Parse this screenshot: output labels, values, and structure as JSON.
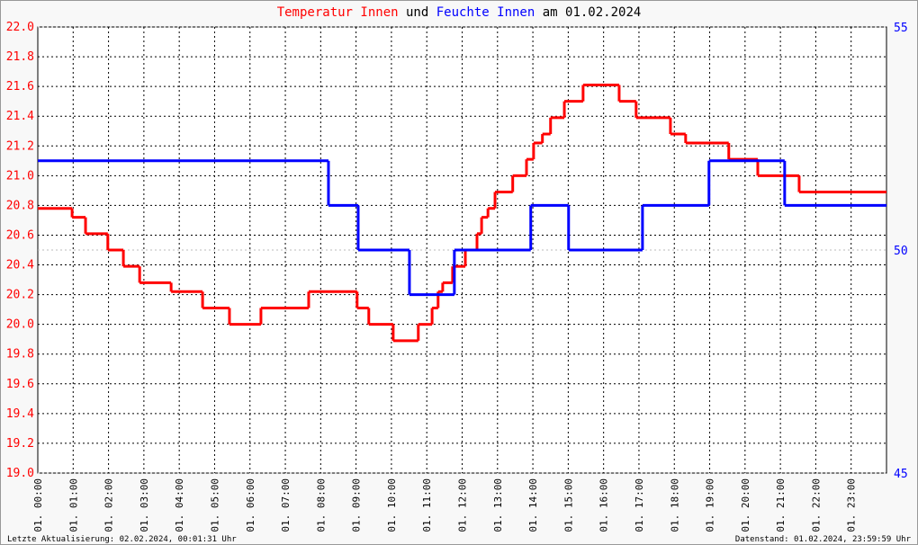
{
  "chart_data": {
    "type": "step",
    "title_connector": "und",
    "title_date": "am 01.02.2024",
    "footer_left": "Letzte Aktualisierung: 02.02.2024, 00:01:31 Uhr",
    "footer_right": "Datenstand: 01.02.2024, 23:59:59 Uhr",
    "xlim": [
      0,
      24
    ],
    "xticks": [
      {
        "value": 0,
        "label": "01. 00:00"
      },
      {
        "value": 1,
        "label": "01. 01:00"
      },
      {
        "value": 2,
        "label": "01. 02:00"
      },
      {
        "value": 3,
        "label": "01. 03:00"
      },
      {
        "value": 4,
        "label": "01. 04:00"
      },
      {
        "value": 5,
        "label": "01. 05:00"
      },
      {
        "value": 6,
        "label": "01. 06:00"
      },
      {
        "value": 7,
        "label": "01. 07:00"
      },
      {
        "value": 8,
        "label": "01. 08:00"
      },
      {
        "value": 9,
        "label": "01. 09:00"
      },
      {
        "value": 10,
        "label": "01. 10:00"
      },
      {
        "value": 11,
        "label": "01. 11:00"
      },
      {
        "value": 12,
        "label": "01. 12:00"
      },
      {
        "value": 13,
        "label": "01. 13:00"
      },
      {
        "value": 14,
        "label": "01. 14:00"
      },
      {
        "value": 15,
        "label": "01. 15:00"
      },
      {
        "value": 16,
        "label": "01. 16:00"
      },
      {
        "value": 17,
        "label": "01. 17:00"
      },
      {
        "value": 18,
        "label": "01. 18:00"
      },
      {
        "value": 19,
        "label": "01. 19:00"
      },
      {
        "value": 20,
        "label": "01. 20:00"
      },
      {
        "value": 21,
        "label": "01. 21:00"
      },
      {
        "value": 22,
        "label": "01. 22:00"
      },
      {
        "value": 23,
        "label": "01. 23:00"
      }
    ],
    "ylim": [
      19.0,
      22.0
    ],
    "yticks": [
      {
        "value": 19,
        "label": "19.0"
      },
      19.2,
      19.4,
      19.6,
      19.8,
      {
        "value": 20,
        "label": "20.0"
      },
      20.2,
      20.4,
      20.6,
      20.8,
      {
        "value": 21,
        "label": "21.0"
      },
      21.2,
      21.4,
      21.6,
      21.8,
      {
        "value": 22,
        "label": "22.0"
      }
    ],
    "y2lim": [
      45,
      55
    ],
    "y2ticks": [
      45,
      50,
      55
    ],
    "grid": true,
    "series": [
      {
        "name": "Temperatur Innen",
        "color": "#ff0000",
        "x": [
          0,
          0.97,
          1.35,
          1.98,
          2.42,
          2.88,
          3.77,
          4.66,
          5.42,
          6.31,
          7.66,
          9.03,
          9.36,
          10.05,
          10.76,
          11.15,
          11.32,
          11.45,
          11.73,
          12.09,
          12.42,
          12.55,
          12.73,
          12.93,
          13.43,
          13.82,
          14.02,
          14.27,
          14.5,
          14.89,
          15.42,
          16.44,
          16.92,
          17.89,
          18.32,
          19.54,
          20.36,
          21.53,
          24
        ],
        "values": [
          20.78,
          20.72,
          20.61,
          20.5,
          20.39,
          20.28,
          20.22,
          20.11,
          20.0,
          20.11,
          20.22,
          20.11,
          20.0,
          19.89,
          20.0,
          20.11,
          20.22,
          20.28,
          20.39,
          20.5,
          20.61,
          20.72,
          20.78,
          20.89,
          21.0,
          21.11,
          21.22,
          21.28,
          21.39,
          21.5,
          21.61,
          21.5,
          21.39,
          21.28,
          21.22,
          21.11,
          21.0,
          20.89,
          20.89
        ]
      },
      {
        "name": "Feuchte Innen",
        "color": "#0000ff",
        "axis": "y2",
        "x": [
          0,
          8.22,
          9.06,
          10.51,
          11.78,
          13.94,
          15.01,
          17.1,
          18.98,
          21.12,
          24
        ],
        "values": [
          52,
          51,
          50,
          49,
          50,
          51,
          50,
          51,
          52,
          51,
          51
        ]
      }
    ]
  }
}
